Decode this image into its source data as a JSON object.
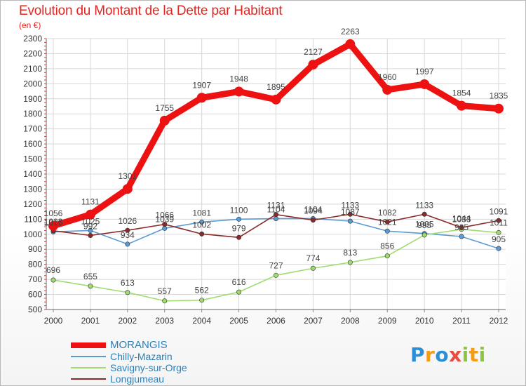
{
  "header": {
    "title": "Evolution du Montant de la Dette par Habitant",
    "unit": "(en €)"
  },
  "logo": {
    "text": "Proxiti",
    "letters": [
      "P",
      "r",
      "o",
      "x",
      "i",
      "t",
      "i"
    ],
    "colors": [
      "#2b8fd6",
      "#f39c12",
      "#2b8fd6",
      "#e74c3c",
      "#8cc63f",
      "#f39c12",
      "#8cc63f"
    ]
  },
  "chart_data": {
    "type": "line",
    "title": "Evolution du Montant de la Dette par Habitant",
    "ylabel": "(en €)",
    "xlabel": "",
    "x": [
      "2000",
      "2001",
      "2002",
      "2003",
      "2004",
      "2005",
      "2006",
      "2007",
      "2008",
      "2009",
      "2010",
      "2011",
      "2012"
    ],
    "ylim": [
      500,
      2300
    ],
    "yticks": [
      500,
      600,
      700,
      800,
      900,
      1000,
      1100,
      1200,
      1300,
      1400,
      1500,
      1600,
      1700,
      1800,
      1900,
      2000,
      2100,
      2200,
      2300
    ],
    "grid": true,
    "legend_position": "bottom-left",
    "series": [
      {
        "name": "MORANGIS",
        "color": "#ee1111",
        "emphasis": true,
        "values": [
          1056,
          1131,
          1301,
          1755,
          1907,
          1948,
          1895,
          2127,
          2263,
          1960,
          1997,
          1854,
          1835
        ]
      },
      {
        "name": "Chilly-Mazarin",
        "color": "#5a9bd4",
        "values": [
          1016,
          1025,
          934,
          1039,
          1081,
          1100,
          1104,
          1104,
          1087,
          1021,
          1005,
          985,
          905
        ],
        "labels": [
          "1016",
          "1025",
          "934",
          "1039",
          "1081",
          "1100",
          "1104",
          "1104",
          "1087",
          "1021",
          "1005",
          "985",
          "905"
        ]
      },
      {
        "name": "Savigny-sur-Orge",
        "color": "#9fdc6e",
        "values": [
          696,
          655,
          613,
          557,
          562,
          616,
          727,
          774,
          813,
          856,
          995,
          1033,
          1011
        ],
        "labels": [
          "696",
          "655",
          "613",
          "557",
          "562",
          "616",
          "727",
          "774",
          "813",
          "856",
          "995",
          "1033",
          "1011"
        ]
      },
      {
        "name": "Longjumeau",
        "color": "#8b2a2a",
        "values": [
          1023,
          992,
          1026,
          1066,
          1002,
          979,
          1131,
          1094,
          1133,
          1082,
          1133,
          1044,
          1091
        ],
        "labels": [
          "1023",
          "992",
          "1026",
          "1066",
          "1002",
          "979",
          "1131",
          "1094",
          "1133",
          "1082",
          "1133",
          "1044",
          "1091"
        ]
      }
    ]
  }
}
